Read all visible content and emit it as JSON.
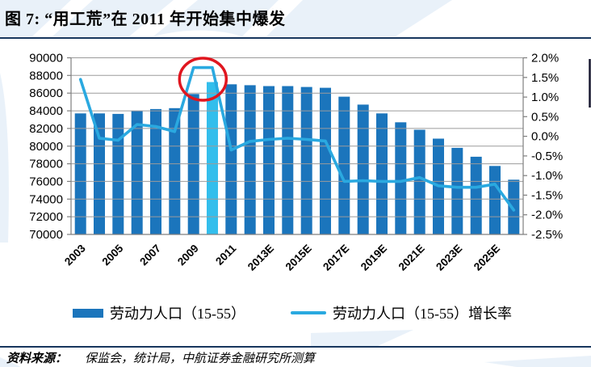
{
  "title": "图 7: “用工荒”在 2011 年开始集中爆发",
  "source": {
    "label": "资料来源：",
    "text": "保监会，统计局，中航证券金融研究所测算"
  },
  "legend": {
    "bar_label": "劳动力人口（15-55）",
    "line_label": "劳动力人口（15-55）增长率"
  },
  "colors": {
    "bar": "#1B75BC",
    "bar_highlight": "#33BEEC",
    "line": "#2AA9E0",
    "circle": "#E0161F",
    "rule": "#17365D",
    "grid": "#9B9B9B",
    "axis": "#7F7F7F",
    "watermark": "#D7E5F4",
    "edge_mark": "#15152E"
  },
  "chart_data": {
    "type": "bar+line",
    "title": "图 7: “用工荒”在 2011 年开始集中爆发",
    "categories": [
      "2003",
      "2004",
      "2005",
      "2006",
      "2007",
      "2008",
      "2009",
      "2010",
      "2011",
      "2012",
      "2013E",
      "2014E",
      "2015E",
      "2016E",
      "2017E",
      "2018E",
      "2019E",
      "2020E",
      "2021E",
      "2022E",
      "2023E",
      "2024E",
      "2025E",
      "2026E"
    ],
    "x_axis_visible_labels": [
      "2003",
      "2005",
      "2007",
      "2009",
      "2011",
      "2013E",
      "2015E",
      "2017E",
      "2019E",
      "2021E",
      "2023E",
      "2025E"
    ],
    "series": [
      {
        "name": "劳动力人口（15-55）",
        "type": "bar",
        "axis": "left",
        "values": [
          83700,
          83700,
          83650,
          84000,
          84200,
          84300,
          85900,
          87250,
          87000,
          86900,
          86800,
          86800,
          86700,
          86600,
          85600,
          84700,
          83700,
          82700,
          81850,
          80850,
          79800,
          78800,
          77750,
          76200
        ],
        "highlight_index": 7,
        "highlight_category": "2010"
      },
      {
        "name": "劳动力人口（15-55）增长率",
        "type": "line",
        "axis": "right",
        "unit": "%",
        "values": [
          1.45,
          -0.05,
          -0.1,
          0.3,
          0.25,
          0.12,
          1.75,
          1.75,
          -0.35,
          -0.13,
          -0.08,
          -0.05,
          -0.08,
          -0.12,
          -1.15,
          -1.13,
          -1.15,
          -1.15,
          -1.05,
          -1.26,
          -1.3,
          -1.3,
          -1.22,
          -1.88
        ]
      }
    ],
    "left_axis": {
      "min": 70000,
      "max": 90000,
      "step": 2000
    },
    "right_axis": {
      "min": -2.5,
      "max": 2.0,
      "step": 0.5,
      "unit": "%"
    },
    "grid": "horizontal-over-bars",
    "legend_position": "bottom",
    "annotation": {
      "type": "ellipse",
      "target": "2009-2010 growth-rate peak and 2010 highlighted bar top"
    }
  }
}
